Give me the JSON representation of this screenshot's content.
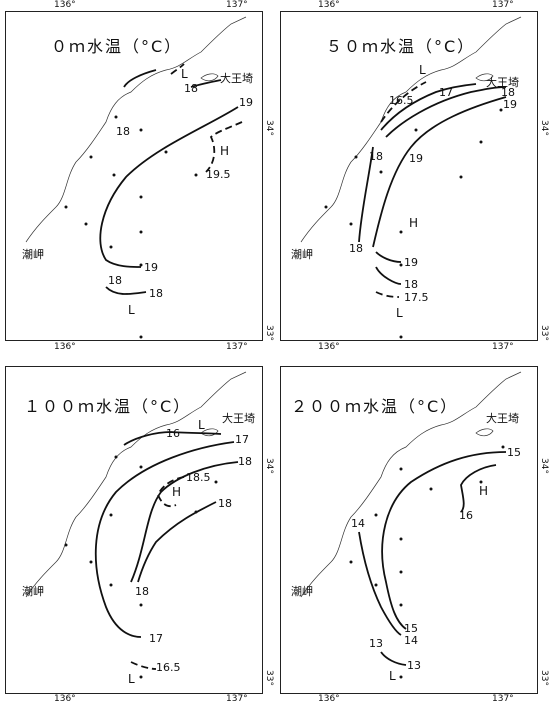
{
  "panels": [
    {
      "title": "０ｍ水温（°C）",
      "labels": {
        "L1": "L",
        "L2": "L",
        "H": "H",
        "place1": "大王埼",
        "place2": "潮岬"
      },
      "contours": [
        "19",
        "18",
        "18",
        "19",
        "19.5",
        "18",
        "18"
      ],
      "ticks": {
        "lon1": "136°",
        "lon2": "137°",
        "lat34": "34°",
        "lat33": "33°"
      }
    },
    {
      "title": "５０ｍ水温（°C）",
      "labels": {
        "L1": "L",
        "L2": "L",
        "H": "H",
        "place1": "大王埼",
        "place2": "潮岬"
      },
      "contours": [
        "16.5",
        "17",
        "18",
        "19",
        "18",
        "19",
        "18",
        "19",
        "18",
        "17.5"
      ],
      "ticks": {
        "lon1": "136°",
        "lon2": "137°",
        "lat34": "34°",
        "lat33": "33°"
      }
    },
    {
      "title": "１００ｍ水温（°C）",
      "labels": {
        "L1": "L",
        "L2": "L",
        "H": "H",
        "place1": "大王埼",
        "place2": "潮岬"
      },
      "contours": [
        "16",
        "17",
        "18",
        "18.5",
        "18",
        "18",
        "17",
        "16.5"
      ],
      "ticks": {
        "lon1": "136°",
        "lon2": "137°",
        "lat34": "34°",
        "lat33": "33°"
      }
    },
    {
      "title": "２００ｍ水温（°C）",
      "labels": {
        "L": "L",
        "H": "H",
        "place1": "大王埼",
        "place2": "潮岬"
      },
      "contours": [
        "15",
        "16",
        "14",
        "15",
        "14",
        "13",
        "13"
      ],
      "ticks": {
        "lon1": "136°",
        "lon2": "137°",
        "lat34": "34°",
        "lat33": "33°"
      }
    }
  ]
}
